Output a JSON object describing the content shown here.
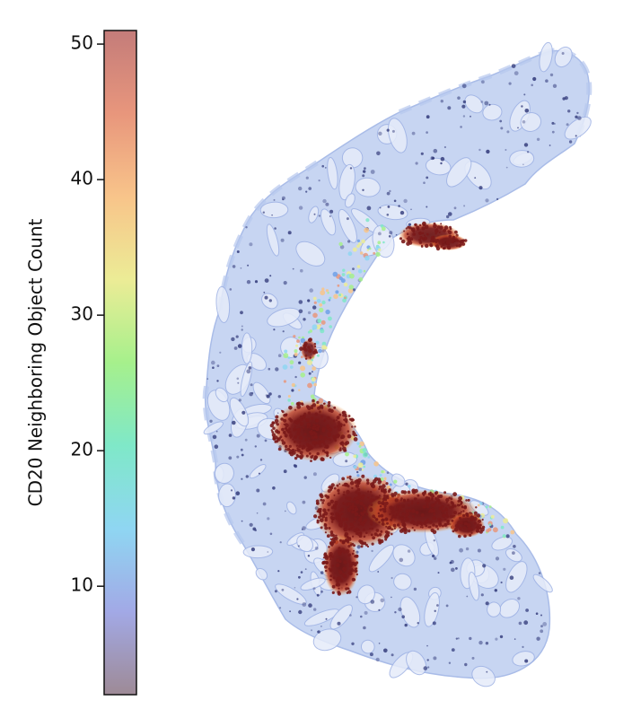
{
  "chart_data": {
    "type": "heatmap",
    "title": "",
    "colorbar": {
      "label": "CD20 Neighboring Object Count",
      "range": [
        2,
        51
      ],
      "ticks": [
        10,
        20,
        30,
        40,
        50
      ],
      "tick_labels": [
        "10",
        "20",
        "30",
        "40",
        "50"
      ],
      "colors": [
        "#9e8a96",
        "#a2a9e6",
        "#8fd6f2",
        "#7fe8c8",
        "#a6f08c",
        "#ecec96",
        "#f8c48a",
        "#e8967c",
        "#c47c7a"
      ]
    },
    "tissue_colors": {
      "background": "#c7d5f2",
      "high": "#7a1a1a",
      "nuclei": "#2f3778"
    },
    "hotspots": [
      {
        "name": "upper-follicle",
        "level": 48
      },
      {
        "name": "small-follicle",
        "level": 45
      },
      {
        "name": "middle-follicle",
        "level": 50
      },
      {
        "name": "lower-follicle",
        "level": 50
      }
    ]
  }
}
